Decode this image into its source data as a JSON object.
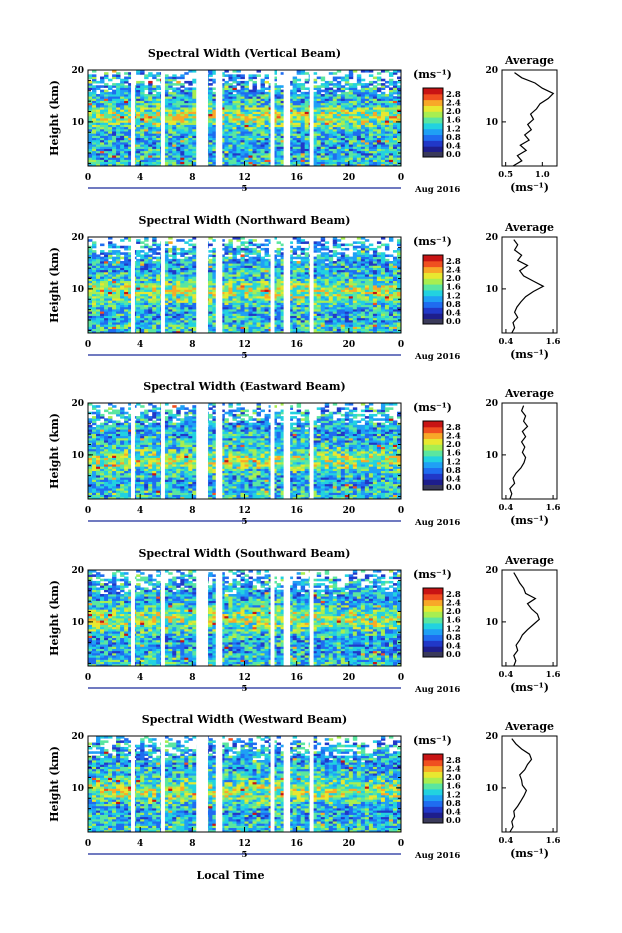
{
  "figure": {
    "xlabel": "Local Time",
    "date_label": "Aug 2016",
    "day_marker": "5",
    "colorbar_unit": "(ms⁻¹)",
    "colorbar_ticks": [
      "0.0",
      "0.4",
      "0.8",
      "1.2",
      "1.6",
      "2.0",
      "2.4",
      "2.8"
    ],
    "avg_xlabel": "(ms⁻¹)",
    "colors": {
      "scale": [
        "#1e1e8c",
        "#2138c8",
        "#1f6cf0",
        "#1fa0f5",
        "#22d2e0",
        "#5ae6a0",
        "#a8ee50",
        "#e8e830",
        "#f8a828",
        "#f05020",
        "#c81414"
      ]
    }
  },
  "chart_data": [
    {
      "type": "heatmap",
      "title": "Spectral Width (Vertical Beam)",
      "ylabel": "Height (km)",
      "x_ticks": [
        "0",
        "4",
        "8",
        "12",
        "16",
        "20",
        "0"
      ],
      "y_ticks": [
        "20",
        "10"
      ],
      "xlim": [
        0,
        24
      ],
      "ylim": [
        1.5,
        20
      ],
      "data_gaps_hours": [
        [
          3.3,
          3.6
        ],
        [
          5.6,
          5.9
        ],
        [
          8.3,
          9.2
        ],
        [
          9.8,
          10.3
        ],
        [
          14.0,
          14.3
        ],
        [
          15.0,
          15.5
        ],
        [
          17.0,
          17.3
        ]
      ],
      "avg": {
        "title": "Average",
        "x_ticks": [
          "0.5",
          "1.0"
        ],
        "xlim": [
          0.45,
          1.2
        ],
        "y_ticks": [
          "20",
          "10"
        ],
        "profile": [
          [
            1.5,
            0.6
          ],
          [
            2.5,
            0.72
          ],
          [
            3.5,
            0.66
          ],
          [
            4.5,
            0.78
          ],
          [
            5.5,
            0.7
          ],
          [
            6.5,
            0.82
          ],
          [
            7.5,
            0.76
          ],
          [
            8.5,
            0.85
          ],
          [
            9.5,
            0.8
          ],
          [
            10.5,
            0.88
          ],
          [
            11.5,
            0.84
          ],
          [
            12.5,
            0.92
          ],
          [
            13.5,
            0.97
          ],
          [
            14.5,
            1.08
          ],
          [
            15.5,
            1.15
          ],
          [
            16.5,
            1.0
          ],
          [
            17.5,
            0.9
          ],
          [
            18.5,
            0.72
          ],
          [
            19.5,
            0.62
          ]
        ]
      }
    },
    {
      "type": "heatmap",
      "title": "Spectral Width (Northward Beam)",
      "ylabel": "Height (km)",
      "x_ticks": [
        "0",
        "4",
        "8",
        "12",
        "16",
        "20",
        "0"
      ],
      "y_ticks": [
        "20",
        "10"
      ],
      "xlim": [
        0,
        24
      ],
      "ylim": [
        1.5,
        20
      ],
      "data_gaps_hours": [
        [
          3.3,
          3.6
        ],
        [
          5.6,
          5.9
        ],
        [
          8.3,
          9.2
        ],
        [
          9.8,
          10.3
        ],
        [
          14.0,
          14.3
        ],
        [
          15.0,
          15.5
        ],
        [
          17.0,
          17.3
        ]
      ],
      "avg": {
        "title": "Average",
        "x_ticks": [
          "0.4",
          "1.6"
        ],
        "xlim": [
          0.3,
          1.7
        ],
        "y_ticks": [
          "20",
          "10"
        ],
        "profile": [
          [
            1.5,
            0.55
          ],
          [
            2.5,
            0.62
          ],
          [
            3.5,
            0.58
          ],
          [
            4.5,
            0.7
          ],
          [
            5.5,
            0.62
          ],
          [
            6.5,
            0.68
          ],
          [
            7.5,
            0.78
          ],
          [
            8.5,
            0.9
          ],
          [
            9.5,
            1.1
          ],
          [
            10.5,
            1.35
          ],
          [
            11.5,
            1.1
          ],
          [
            12.5,
            0.85
          ],
          [
            13.5,
            0.75
          ],
          [
            14.5,
            0.95
          ],
          [
            15.5,
            0.7
          ],
          [
            16.5,
            0.8
          ],
          [
            17.5,
            0.62
          ],
          [
            18.5,
            0.7
          ],
          [
            19.5,
            0.6
          ]
        ]
      }
    },
    {
      "type": "heatmap",
      "title": "Spectral Width (Eastward Beam)",
      "ylabel": "Height (km)",
      "x_ticks": [
        "0",
        "4",
        "8",
        "12",
        "16",
        "20",
        "0"
      ],
      "y_ticks": [
        "20",
        "10"
      ],
      "xlim": [
        0,
        24
      ],
      "ylim": [
        1.5,
        20
      ],
      "data_gaps_hours": [
        [
          3.3,
          3.6
        ],
        [
          5.6,
          5.9
        ],
        [
          8.3,
          9.2
        ],
        [
          9.8,
          10.3
        ],
        [
          14.0,
          14.3
        ],
        [
          15.0,
          15.5
        ],
        [
          17.0,
          17.3
        ]
      ],
      "avg": {
        "title": "Average",
        "x_ticks": [
          "0.4",
          "1.6"
        ],
        "xlim": [
          0.3,
          1.7
        ],
        "y_ticks": [
          "20",
          "10"
        ],
        "profile": [
          [
            1.5,
            0.5
          ],
          [
            2.5,
            0.55
          ],
          [
            3.5,
            0.5
          ],
          [
            4.5,
            0.62
          ],
          [
            5.5,
            0.58
          ],
          [
            6.5,
            0.66
          ],
          [
            7.5,
            0.78
          ],
          [
            8.5,
            0.86
          ],
          [
            9.5,
            0.9
          ],
          [
            10.5,
            0.82
          ],
          [
            11.5,
            0.88
          ],
          [
            12.5,
            0.8
          ],
          [
            13.5,
            0.9
          ],
          [
            14.5,
            0.82
          ],
          [
            15.5,
            0.95
          ],
          [
            16.5,
            0.85
          ],
          [
            17.5,
            0.9
          ],
          [
            18.5,
            0.8
          ],
          [
            19.5,
            0.85
          ]
        ]
      }
    },
    {
      "type": "heatmap",
      "title": "Spectral Width (Southward Beam)",
      "ylabel": "Height (km)",
      "x_ticks": [
        "0",
        "4",
        "8",
        "12",
        "16",
        "20",
        "0"
      ],
      "y_ticks": [
        "20",
        "10"
      ],
      "xlim": [
        0,
        24
      ],
      "ylim": [
        1.5,
        20
      ],
      "data_gaps_hours": [
        [
          3.3,
          3.6
        ],
        [
          5.6,
          5.9
        ],
        [
          8.3,
          9.2
        ],
        [
          9.8,
          10.3
        ],
        [
          14.0,
          14.3
        ],
        [
          15.0,
          15.5
        ],
        [
          17.0,
          17.3
        ]
      ],
      "avg": {
        "title": "Average",
        "x_ticks": [
          "0.4",
          "1.6"
        ],
        "xlim": [
          0.3,
          1.7
        ],
        "y_ticks": [
          "20",
          "10"
        ],
        "profile": [
          [
            1.5,
            0.6
          ],
          [
            2.5,
            0.65
          ],
          [
            3.5,
            0.6
          ],
          [
            4.5,
            0.7
          ],
          [
            5.5,
            0.66
          ],
          [
            6.5,
            0.75
          ],
          [
            7.5,
            0.82
          ],
          [
            8.5,
            0.95
          ],
          [
            9.5,
            1.1
          ],
          [
            10.5,
            1.25
          ],
          [
            11.5,
            1.2
          ],
          [
            12.5,
            1.05
          ],
          [
            13.5,
            0.95
          ],
          [
            14.5,
            1.15
          ],
          [
            15.5,
            0.9
          ],
          [
            16.5,
            0.85
          ],
          [
            17.5,
            0.75
          ],
          [
            18.5,
            0.68
          ],
          [
            19.5,
            0.6
          ]
        ]
      }
    },
    {
      "type": "heatmap",
      "title": "Spectral Width (Westward Beam)",
      "ylabel": "Height (km)",
      "x_ticks": [
        "0",
        "4",
        "8",
        "12",
        "16",
        "20",
        "0"
      ],
      "y_ticks": [
        "20",
        "10"
      ],
      "xlim": [
        0,
        24
      ],
      "ylim": [
        1.5,
        20
      ],
      "data_gaps_hours": [
        [
          3.3,
          3.6
        ],
        [
          5.6,
          5.9
        ],
        [
          8.3,
          9.2
        ],
        [
          9.8,
          10.3
        ],
        [
          14.0,
          14.3
        ],
        [
          15.0,
          15.5
        ],
        [
          17.0,
          17.3
        ]
      ],
      "avg": {
        "title": "Average",
        "x_ticks": [
          "0.4",
          "1.6"
        ],
        "xlim": [
          0.3,
          1.7
        ],
        "y_ticks": [
          "20",
          "10"
        ],
        "profile": [
          [
            1.5,
            0.5
          ],
          [
            2.5,
            0.58
          ],
          [
            3.5,
            0.55
          ],
          [
            4.5,
            0.62
          ],
          [
            5.5,
            0.6
          ],
          [
            6.5,
            0.7
          ],
          [
            7.5,
            0.78
          ],
          [
            8.5,
            0.86
          ],
          [
            9.5,
            0.92
          ],
          [
            10.5,
            0.82
          ],
          [
            11.5,
            0.8
          ],
          [
            12.5,
            0.75
          ],
          [
            13.5,
            0.88
          ],
          [
            14.5,
            0.95
          ],
          [
            15.5,
            1.05
          ],
          [
            16.5,
            1.0
          ],
          [
            17.5,
            0.8
          ],
          [
            18.5,
            0.65
          ],
          [
            19.5,
            0.55
          ]
        ]
      }
    }
  ]
}
